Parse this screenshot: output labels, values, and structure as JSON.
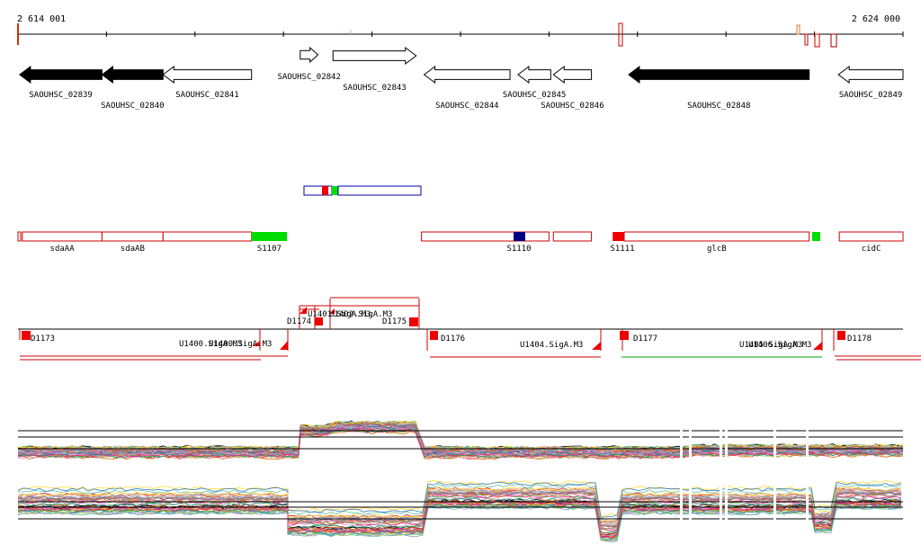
{
  "colors": {
    "axis": "#000000",
    "gene_strand_minus": "#000000",
    "gene_outline": "#000000",
    "operon_outline": "#cc0000",
    "operon_marker_green": "#00dd00",
    "operon_marker_red": "#ee0000",
    "operon_marker_blue": "#000080",
    "promoter_red": "#ee0000",
    "operon_row_outline": "#0000aa",
    "terminator_line": "#cc0000",
    "terminator_line_green": "#00aa00"
  },
  "ruler": {
    "start_label": "2 614 001",
    "end_label": "2 624 000",
    "start_bp": 2614001,
    "end_bp": 2624000
  },
  "genes": [
    {
      "id": "SAOUHSC_02839",
      "start": 2614020,
      "end": 2614950,
      "strand": "-",
      "filled": true,
      "label_row": 0
    },
    {
      "id": "SAOUHSC_02840",
      "start": 2614950,
      "end": 2615640,
      "strand": "-",
      "filled": true,
      "label_row": 1
    },
    {
      "id": "SAOUHSC_02841",
      "start": 2615640,
      "end": 2616640,
      "strand": "-",
      "filled": false,
      "label_row": 0
    },
    {
      "id": "SAOUHSC_02842",
      "start": 2617190,
      "end": 2617390,
      "strand": "+",
      "filled": false,
      "label_row": 0
    },
    {
      "id": "SAOUHSC_02843",
      "start": 2617560,
      "end": 2618500,
      "strand": "+",
      "filled": false,
      "label_row": 1
    },
    {
      "id": "SAOUHSC_02844",
      "start": 2618590,
      "end": 2619560,
      "strand": "-",
      "filled": false,
      "label_row": 1
    },
    {
      "id": "SAOUHSC_02845",
      "start": 2619650,
      "end": 2620020,
      "strand": "-",
      "filled": false,
      "label_row": 2
    },
    {
      "id": "SAOUHSC_02846",
      "start": 2620050,
      "end": 2620480,
      "strand": "-",
      "filled": false,
      "label_row": 3
    },
    {
      "id": "SAOUHSC_02848",
      "start": 2620900,
      "end": 2622940,
      "strand": "-",
      "filled": true,
      "label_row": 1
    },
    {
      "id": "SAOUHSC_02849",
      "start": 2623270,
      "end": 2624000,
      "strand": "-",
      "filled": false,
      "label_row": 2
    }
  ],
  "operons": [
    {
      "label": "sdaAA",
      "start": 2614050,
      "end": 2614950
    },
    {
      "label": "sdaAB",
      "start": 2614950,
      "end": 2615640
    },
    {
      "label": "",
      "start": 2615640,
      "end": 2616640
    },
    {
      "label": "S1107",
      "start": 2616640,
      "end": 2617040,
      "marker": "green"
    },
    {
      "label": "S1110",
      "start": 2618560,
      "end": 2620000,
      "marker": "blue"
    },
    {
      "label": "",
      "start": 2620050,
      "end": 2620480
    },
    {
      "label": "S1111",
      "start": 2620720,
      "end": 2620850,
      "marker": "red"
    },
    {
      "label": "glcB",
      "start": 2620850,
      "end": 2622940
    },
    {
      "label": "cidC",
      "start": 2623280,
      "end": 2624000
    }
  ],
  "transcripts": [
    {
      "label": "D1173",
      "label_row": 0
    },
    {
      "label": "U1400.SigA.M3",
      "label_row": 1
    },
    {
      "label": "U1400.SigA.M3",
      "label_row": 1
    },
    {
      "label": "D1174",
      "label_row": 0
    },
    {
      "label": "U1401.SigA.M3",
      "label_row": 2
    },
    {
      "label": "U1402.SigA.M3",
      "label_row": 2
    },
    {
      "label": "D1175",
      "label_row": 0
    },
    {
      "label": "D1176",
      "label_row": 0
    },
    {
      "label": "U1404.SigA.M3",
      "label_row": 1
    },
    {
      "label": "D1177",
      "label_row": 0
    },
    {
      "label": "U1405.SigA.M3",
      "label_row": 1
    },
    {
      "label": "U1406.SigA.M3",
      "label_row": 1
    },
    {
      "label": "D1178",
      "label_row": 0
    }
  ]
}
